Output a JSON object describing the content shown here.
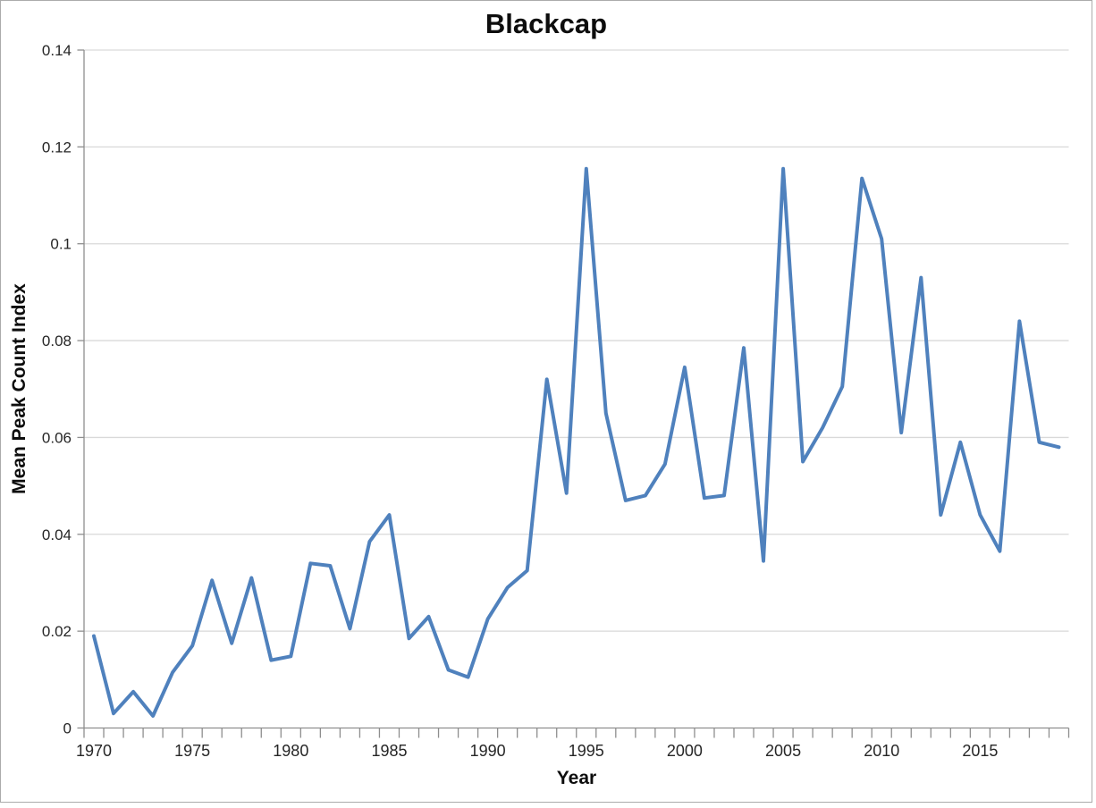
{
  "chart_data": {
    "type": "line",
    "title": "Blackcap",
    "xlabel": "Year",
    "ylabel": "Mean Peak Count Index",
    "x": [
      1970,
      1971,
      1972,
      1973,
      1974,
      1975,
      1976,
      1977,
      1978,
      1979,
      1980,
      1981,
      1982,
      1983,
      1984,
      1985,
      1986,
      1987,
      1988,
      1989,
      1990,
      1991,
      1992,
      1993,
      1994,
      1995,
      1996,
      1997,
      1998,
      1999,
      2000,
      2001,
      2002,
      2003,
      2004,
      2005,
      2006,
      2007,
      2008,
      2009,
      2010,
      2011,
      2012,
      2013,
      2014,
      2015,
      2016,
      2017,
      2018,
      2019
    ],
    "values": [
      0.019,
      0.003,
      0.0075,
      0.0025,
      0.0115,
      0.017,
      0.0305,
      0.0175,
      0.031,
      0.014,
      0.0148,
      0.034,
      0.0335,
      0.0205,
      0.0385,
      0.044,
      0.0185,
      0.023,
      0.012,
      0.0105,
      0.0225,
      0.029,
      0.0325,
      0.072,
      0.0485,
      0.1155,
      0.065,
      0.047,
      0.048,
      0.0545,
      0.0745,
      0.0475,
      0.048,
      0.0785,
      0.0345,
      0.1155,
      0.055,
      0.062,
      0.0705,
      0.1135,
      0.101,
      0.061,
      0.093,
      0.044,
      0.059,
      0.044,
      0.0365,
      0.084,
      0.059,
      0.058
    ],
    "ylim": [
      0,
      0.14
    ],
    "ytick_interval": 0.02,
    "ytick_labels": [
      "0",
      "0.02",
      "0.04",
      "0.06",
      "0.08",
      "0.1",
      "0.12",
      "0.14"
    ],
    "xtick_labeled_years": [
      1970,
      1975,
      1980,
      1985,
      1990,
      1995,
      2000,
      2005,
      2010,
      2015
    ],
    "grid": "horizontal",
    "legend": "none",
    "line_color": "#4F81BD",
    "gridline_color": "#D9D9D9",
    "axis_color": "#8E8E8E",
    "tick_label_color": "#262626"
  }
}
